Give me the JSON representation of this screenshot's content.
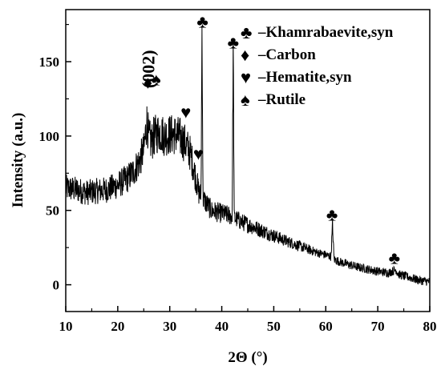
{
  "chart_data": {
    "type": "line",
    "xlabel": "2Θ (°)",
    "ylabel": "Intensity (a.u.)",
    "xlim": [
      10,
      80
    ],
    "ylim": [
      -18,
      185
    ],
    "xticks": [
      10,
      20,
      30,
      40,
      50,
      60,
      70,
      80
    ],
    "yticks": [
      0,
      50,
      100,
      150
    ],
    "grid": false,
    "legend_position": "top-right",
    "legend": [
      {
        "symbol": "♣",
        "label": "–Khamrabaevite,syn"
      },
      {
        "symbol": "♦",
        "label": "–Carbon"
      },
      {
        "symbol": "♥",
        "label": "–Hematite,syn"
      },
      {
        "symbol": "♠",
        "label": "–Rutile"
      }
    ],
    "series": [
      {
        "color": "#000000",
        "x": [
          10,
          12,
          14,
          16,
          18,
          20,
          22,
          23,
          24,
          25,
          25.6,
          26,
          26.5,
          27,
          28,
          29,
          30,
          31,
          32,
          33,
          34,
          35,
          35.6,
          36,
          36.2,
          36.4,
          37,
          38,
          40,
          42,
          42.2,
          42.4,
          44,
          46,
          48,
          50,
          52,
          55,
          58,
          60,
          61,
          61.3,
          61.6,
          63,
          66,
          70,
          72,
          73.5,
          74,
          76,
          78,
          80
        ],
        "y": [
          65,
          64,
          62,
          63,
          64,
          67,
          72,
          76,
          82,
          90,
          110,
          98,
          96,
          100,
          103,
          100,
          101,
          101,
          99,
          95,
          88,
          72,
          62,
          60,
          172,
          58,
          55,
          50,
          48,
          46,
          160,
          45,
          42,
          39,
          36,
          33,
          30,
          26,
          22,
          20,
          19,
          40,
          17,
          15,
          12,
          9,
          8,
          10,
          7,
          5,
          3,
          2
        ]
      }
    ],
    "annotations": [
      {
        "text": "(002)",
        "x": 27,
        "y": 145
      },
      {
        "symbol": "♦",
        "x": 25.8,
        "y": 132
      },
      {
        "symbol": "♠",
        "x": 27.4,
        "y": 134
      },
      {
        "symbol": "♥",
        "x": 33.1,
        "y": 112
      },
      {
        "symbol": "♥",
        "x": 35.5,
        "y": 84
      },
      {
        "symbol": "♣",
        "x": 36.3,
        "y": 173
      },
      {
        "symbol": "♣",
        "x": 42.2,
        "y": 159
      },
      {
        "symbol": "♣",
        "x": 61.2,
        "y": 43
      },
      {
        "symbol": "♣",
        "x": 73.2,
        "y": 14
      }
    ]
  }
}
